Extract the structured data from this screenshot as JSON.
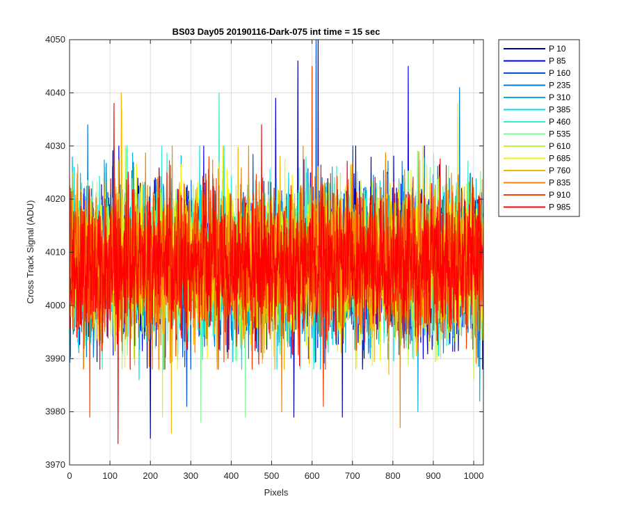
{
  "chart_data": {
    "type": "line",
    "title": "BS03 Day05 20190116-Dark-075 int time = 15 sec",
    "xlabel": "Pixels",
    "ylabel": "Cross Track Signal (ADU)",
    "xlim": [
      0,
      1024
    ],
    "ylim": [
      3970,
      4050
    ],
    "xticks": [
      "0",
      "100",
      "200",
      "300",
      "400",
      "500",
      "600",
      "700",
      "800",
      "900",
      "1000"
    ],
    "yticks": [
      "3970",
      "3980",
      "3990",
      "4000",
      "4010",
      "4020",
      "4030",
      "4040",
      "4050"
    ],
    "grid": true,
    "legend_position": "outside-top-right",
    "signal_mean": 4008,
    "signal_noise_sigma": 7,
    "series": [
      {
        "name": "P 10",
        "color": "#0000aa",
        "spikes": [
          [
            565,
            4046
          ],
          [
            555,
            3979
          ],
          [
            675,
            3979
          ],
          [
            200,
            3975
          ]
        ]
      },
      {
        "name": "P 85",
        "color": "#0000e6",
        "spikes": [
          [
            838,
            4045
          ],
          [
            615,
            4051
          ],
          [
            510,
            4039
          ]
        ]
      },
      {
        "name": "P 160",
        "color": "#0050dc",
        "spikes": [
          [
            610,
            4050
          ],
          [
            290,
            3981
          ]
        ]
      },
      {
        "name": "P 235",
        "color": "#007ad8",
        "spikes": [
          [
            965,
            4041
          ],
          [
            45,
            4034
          ]
        ]
      },
      {
        "name": "P 310",
        "color": "#00b0e6",
        "spikes": [
          [
            1015,
            3982
          ],
          [
            862,
            3980
          ]
        ]
      },
      {
        "name": "P 385",
        "color": "#00e0e6",
        "spikes": [
          [
            172,
            3986
          ]
        ]
      },
      {
        "name": "P 460",
        "color": "#30f0c8",
        "spikes": [
          [
            370,
            4040
          ]
        ]
      },
      {
        "name": "P 535",
        "color": "#7dfa96",
        "spikes": [
          [
            325,
            3978
          ],
          [
            435,
            3979
          ]
        ]
      },
      {
        "name": "P 610",
        "color": "#c0f532",
        "spikes": [
          [
            230,
            3979
          ],
          [
            1000,
            3986
          ]
        ]
      },
      {
        "name": "P 685",
        "color": "#f5f500",
        "spikes": [
          [
            130,
            4037
          ],
          [
            960,
            4038
          ]
        ]
      },
      {
        "name": "P 760",
        "color": "#f5b400",
        "spikes": [
          [
            128,
            4040
          ],
          [
            252,
            3976
          ],
          [
            790,
            3987
          ]
        ]
      },
      {
        "name": "P 835",
        "color": "#f58200",
        "spikes": [
          [
            818,
            3977
          ],
          [
            525,
            3980
          ]
        ]
      },
      {
        "name": "P 910",
        "color": "#f54000",
        "spikes": [
          [
            600,
            4045
          ],
          [
            50,
            3979
          ],
          [
            628,
            3981
          ]
        ]
      },
      {
        "name": "P 985",
        "color": "#ff0000",
        "spikes": [
          [
            110,
            4038
          ],
          [
            120,
            3974
          ],
          [
            475,
            4034
          ]
        ]
      }
    ]
  }
}
